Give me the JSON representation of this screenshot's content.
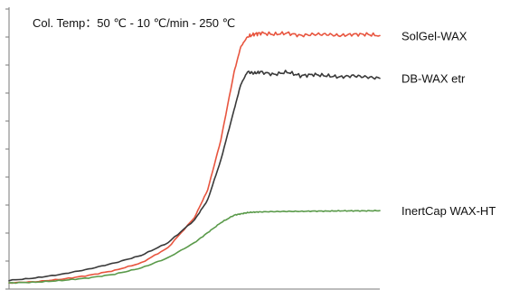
{
  "chart_data": {
    "type": "line",
    "title": "",
    "xlabel": "",
    "ylabel": "",
    "annotation": "Col. Temp：50 ℃ - 10 ℃/min - 250 ℃",
    "x_range": [
      0,
      28
    ],
    "ylim": [
      0,
      100
    ],
    "y_tick_count": 11,
    "grid": false,
    "legend_placement": "right, labels at series ends",
    "x": [
      0,
      2,
      4,
      6,
      8,
      10,
      12,
      14,
      15,
      16,
      17,
      17.5,
      18,
      18.5,
      19,
      20,
      21,
      22,
      23,
      24,
      25,
      26,
      27,
      28
    ],
    "series": [
      {
        "name": "SolGel-WAX",
        "color": "#e8553f",
        "values": [
          1,
          1.5,
          2.5,
          4,
          6,
          9,
          15,
          27,
          38,
          58,
          85,
          95,
          99,
          100,
          100.5,
          100,
          100.5,
          99.5,
          100,
          100,
          99.5,
          100,
          100,
          99.5
        ]
      },
      {
        "name": "DB-WAX etr",
        "color": "#3a3a3a",
        "values": [
          2,
          3,
          4.5,
          6.5,
          9,
          12,
          17,
          26,
          34,
          50,
          70,
          80,
          85,
          84.5,
          85,
          84,
          85,
          83.5,
          84,
          83.5,
          83,
          83.5,
          83,
          82.5
        ]
      },
      {
        "name": "InertCap WAX-HT",
        "color": "#5a9a4a",
        "values": [
          1,
          1.3,
          2,
          3,
          4.5,
          7,
          11,
          17,
          21,
          25,
          28,
          28.5,
          29,
          29.2,
          29.3,
          29.4,
          29.5,
          29.5,
          29.6,
          29.6,
          29.7,
          29.7,
          29.7,
          29.8
        ]
      }
    ]
  }
}
